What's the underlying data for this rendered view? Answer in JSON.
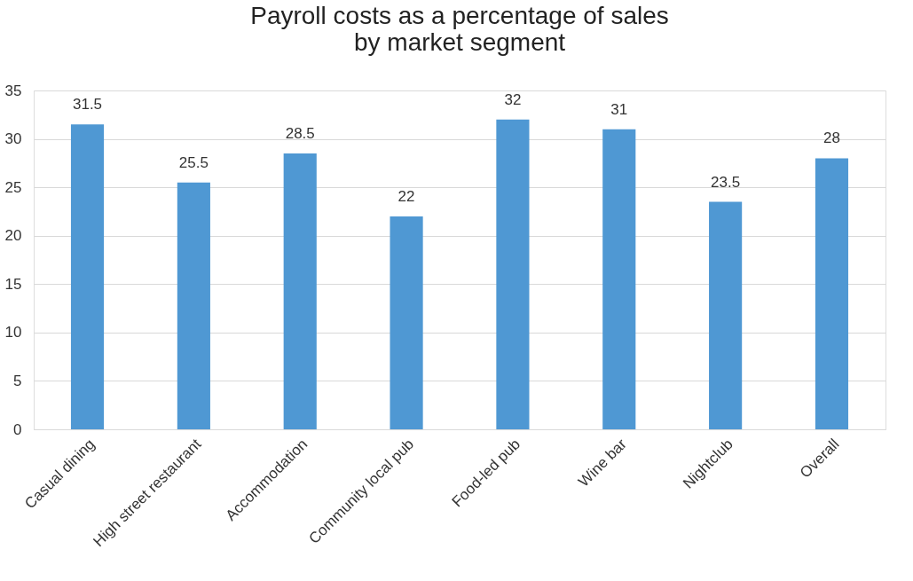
{
  "chart_data": {
    "type": "bar",
    "title": "Payroll costs as a percentage of sales\nby market segment",
    "categories": [
      "Casual dining",
      "High street restaurant",
      "Accommodation",
      "Community local pub",
      "Food-led pub",
      "Wine bar",
      "Nightclub",
      "Overall"
    ],
    "values": [
      31.5,
      25.5,
      28.5,
      22,
      32,
      31,
      23.5,
      28
    ],
    "color": "#4f98d3",
    "ylim": [
      0,
      35
    ],
    "yticks": [
      0,
      5,
      10,
      15,
      20,
      25,
      30,
      35
    ],
    "grid": "y",
    "data_labels": true
  }
}
